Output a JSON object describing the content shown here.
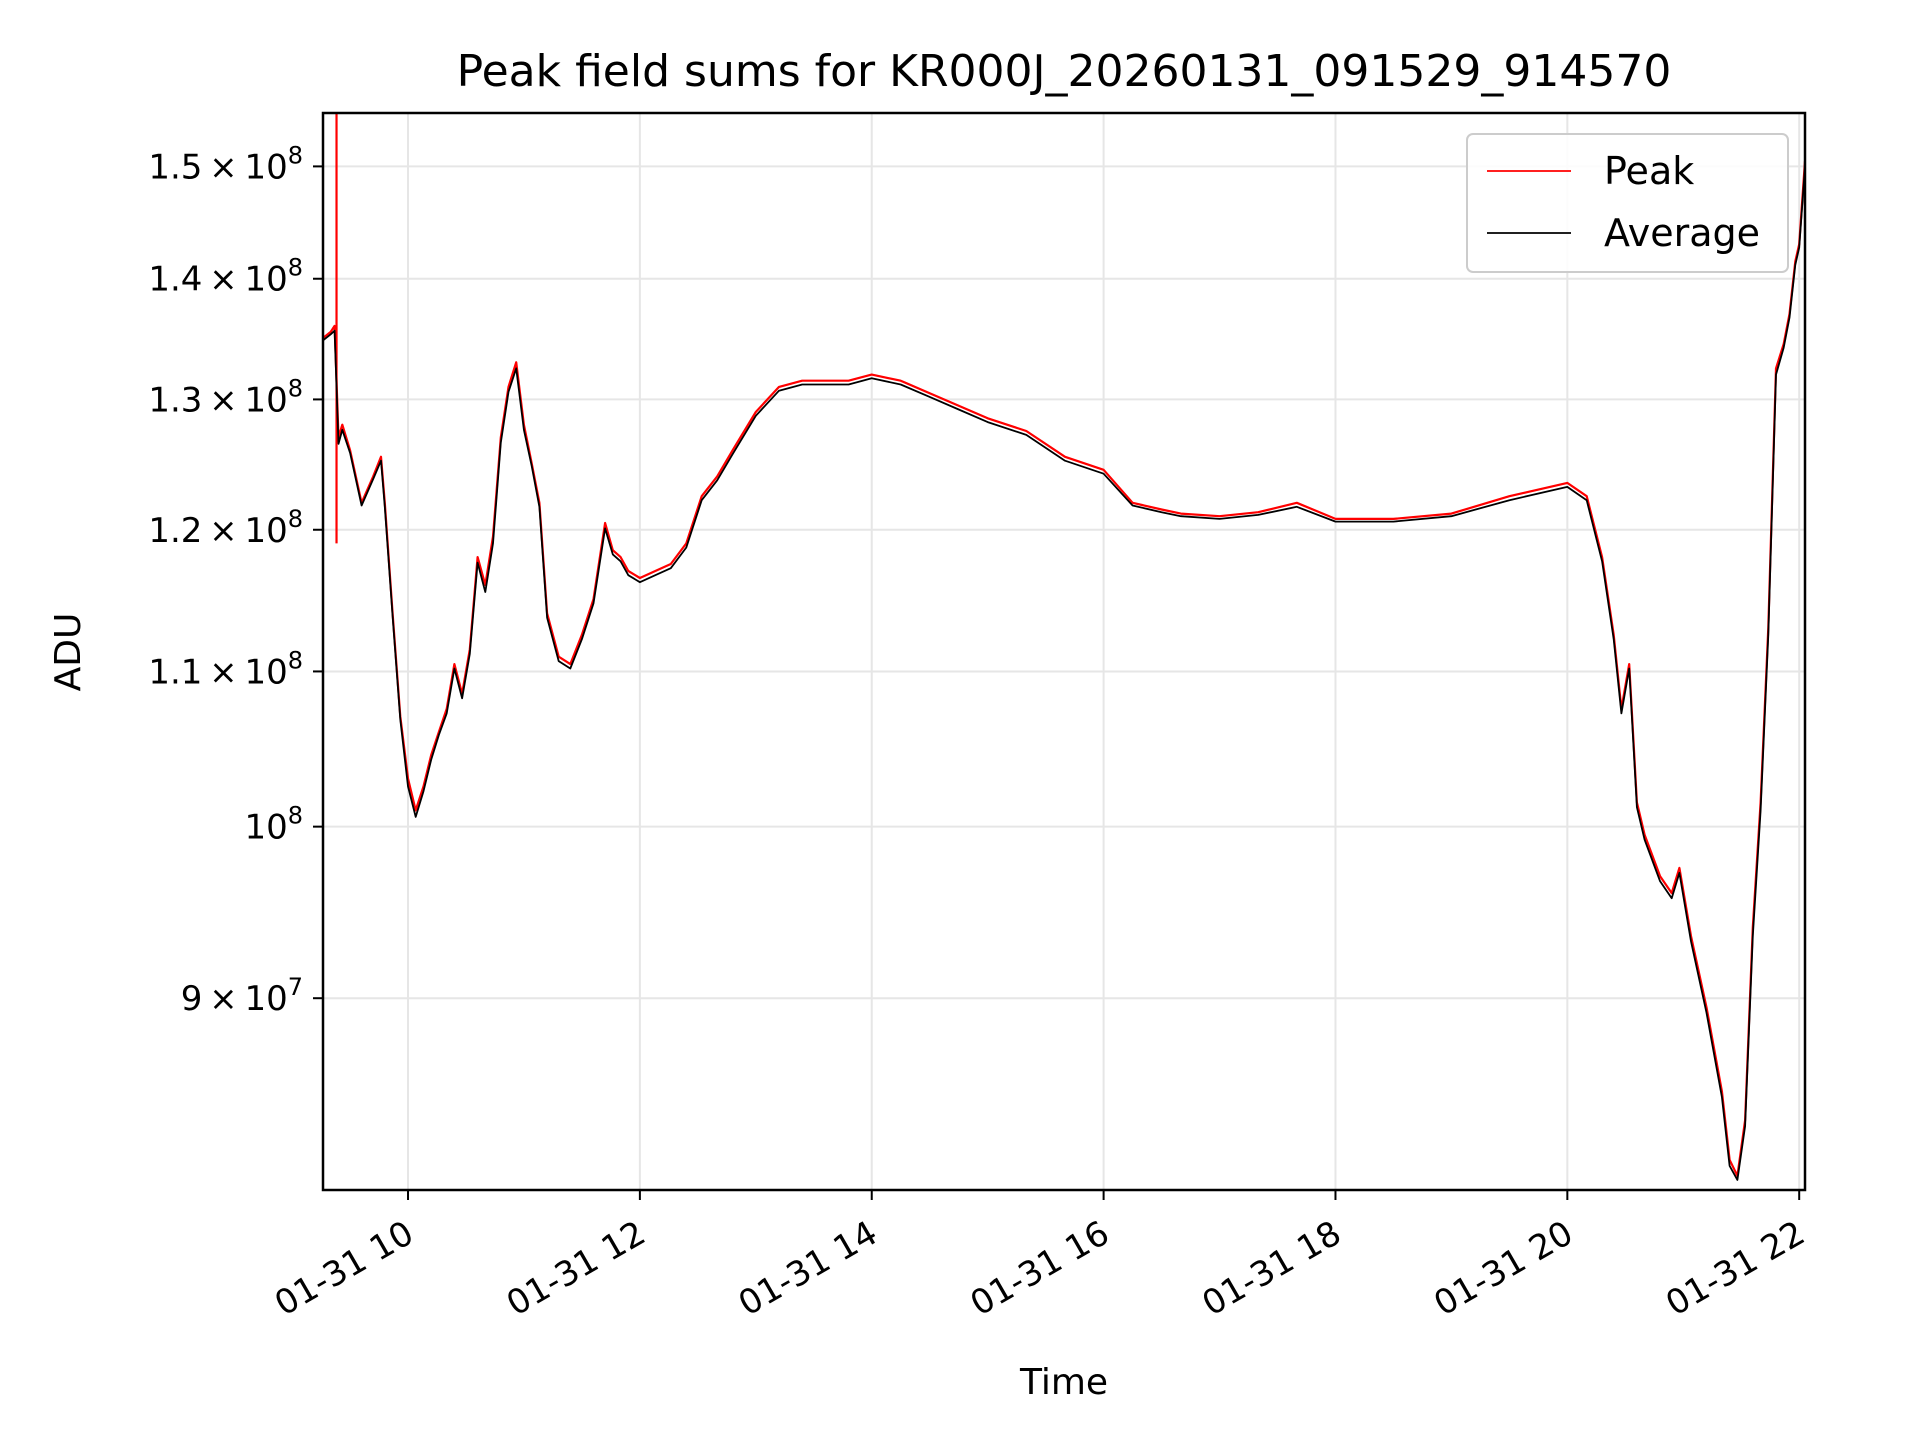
{
  "chart_data": {
    "type": "line",
    "title": "Peak field sums for KR000J_20260131_091529_914570",
    "xlabel": "Time",
    "ylabel": "ADU",
    "yscale": "log",
    "grid": true,
    "legend_position": "top-right",
    "xlim": [
      "2026-01-31 09:16",
      "2026-01-31 22:03"
    ],
    "ylim": [
      80000000,
      155000000
    ],
    "x_ticks": [
      {
        "value": "2026-01-31 10:00",
        "label": "01-31 10"
      },
      {
        "value": "2026-01-31 12:00",
        "label": "01-31 12"
      },
      {
        "value": "2026-01-31 14:00",
        "label": "01-31 14"
      },
      {
        "value": "2026-01-31 16:00",
        "label": "01-31 16"
      },
      {
        "value": "2026-01-31 18:00",
        "label": "01-31 18"
      },
      {
        "value": "2026-01-31 20:00",
        "label": "01-31 20"
      },
      {
        "value": "2026-01-31 22:00",
        "label": "01-31 22"
      }
    ],
    "y_ticks": [
      {
        "value": 90000000,
        "mantissa": "9",
        "base": "10",
        "exp": "7"
      },
      {
        "value": 100000000,
        "mantissa": "",
        "base": "10",
        "exp": "8"
      },
      {
        "value": 110000000,
        "mantissa": "1.1",
        "base": "10",
        "exp": "8"
      },
      {
        "value": 120000000,
        "mantissa": "1.2",
        "base": "10",
        "exp": "8"
      },
      {
        "value": 130000000,
        "mantissa": "1.3",
        "base": "10",
        "exp": "8"
      },
      {
        "value": 140000000,
        "mantissa": "1.4",
        "base": "10",
        "exp": "8"
      },
      {
        "value": 150000000,
        "mantissa": "1.5",
        "base": "10",
        "exp": "8"
      }
    ],
    "series": [
      {
        "name": "Peak",
        "color": "#ff0000",
        "spike": {
          "x": "2026-01-31 09:23",
          "y_min": 119000000,
          "y_max": 155000000
        },
        "x": [
          "2026-01-31 09:16",
          "2026-01-31 09:20",
          "2026-01-31 09:22",
          "2026-01-31 09:24",
          "2026-01-31 09:26",
          "2026-01-31 09:30",
          "2026-01-31 09:36",
          "2026-01-31 09:42",
          "2026-01-31 09:46",
          "2026-01-31 09:48",
          "2026-01-31 09:52",
          "2026-01-31 09:56",
          "2026-01-31 10:00",
          "2026-01-31 10:04",
          "2026-01-31 10:08",
          "2026-01-31 10:12",
          "2026-01-31 10:16",
          "2026-01-31 10:20",
          "2026-01-31 10:24",
          "2026-01-31 10:28",
          "2026-01-31 10:32",
          "2026-01-31 10:36",
          "2026-01-31 10:40",
          "2026-01-31 10:44",
          "2026-01-31 10:48",
          "2026-01-31 10:52",
          "2026-01-31 10:56",
          "2026-01-31 11:00",
          "2026-01-31 11:04",
          "2026-01-31 11:08",
          "2026-01-31 11:12",
          "2026-01-31 11:18",
          "2026-01-31 11:24",
          "2026-01-31 11:30",
          "2026-01-31 11:36",
          "2026-01-31 11:42",
          "2026-01-31 11:46",
          "2026-01-31 11:50",
          "2026-01-31 11:54",
          "2026-01-31 12:00",
          "2026-01-31 12:08",
          "2026-01-31 12:16",
          "2026-01-31 12:24",
          "2026-01-31 12:32",
          "2026-01-31 12:40",
          "2026-01-31 12:48",
          "2026-01-31 13:00",
          "2026-01-31 13:12",
          "2026-01-31 13:24",
          "2026-01-31 13:36",
          "2026-01-31 13:48",
          "2026-01-31 14:00",
          "2026-01-31 14:15",
          "2026-01-31 14:30",
          "2026-01-31 14:45",
          "2026-01-31 15:00",
          "2026-01-31 15:20",
          "2026-01-31 15:40",
          "2026-01-31 16:00",
          "2026-01-31 16:15",
          "2026-01-31 16:30",
          "2026-01-31 16:40",
          "2026-01-31 17:00",
          "2026-01-31 17:20",
          "2026-01-31 17:40",
          "2026-01-31 18:00",
          "2026-01-31 18:30",
          "2026-01-31 19:00",
          "2026-01-31 19:30",
          "2026-01-31 20:00",
          "2026-01-31 20:10",
          "2026-01-31 20:18",
          "2026-01-31 20:24",
          "2026-01-31 20:28",
          "2026-01-31 20:32",
          "2026-01-31 20:36",
          "2026-01-31 20:40",
          "2026-01-31 20:48",
          "2026-01-31 20:54",
          "2026-01-31 20:58",
          "2026-01-31 21:04",
          "2026-01-31 21:12",
          "2026-01-31 21:20",
          "2026-01-31 21:24",
          "2026-01-31 21:28",
          "2026-01-31 21:32",
          "2026-01-31 21:36",
          "2026-01-31 21:40",
          "2026-01-31 21:44",
          "2026-01-31 21:48",
          "2026-01-31 21:52",
          "2026-01-31 21:55",
          "2026-01-31 21:58",
          "2026-01-31 22:00",
          "2026-01-31 22:03"
        ],
        "y": [
          135000000,
          135500000,
          136000000,
          127000000,
          128000000,
          126000000,
          122000000,
          124000000,
          125500000,
          122000000,
          114000000,
          107000000,
          103000000,
          101000000,
          102500000,
          104500000,
          106000000,
          107500000,
          110500000,
          108500000,
          111500000,
          118000000,
          116000000,
          119500000,
          127000000,
          131000000,
          133000000,
          128000000,
          125000000,
          122000000,
          114000000,
          111000000,
          110500000,
          112500000,
          115000000,
          120500000,
          118500000,
          118000000,
          117000000,
          116500000,
          117000000,
          117500000,
          119000000,
          122500000,
          124000000,
          126000000,
          129000000,
          131000000,
          131500000,
          131500000,
          131500000,
          132000000,
          131500000,
          130500000,
          129500000,
          128500000,
          127500000,
          125500000,
          124500000,
          122000000,
          121500000,
          121200000,
          121000000,
          121300000,
          122000000,
          120800000,
          120800000,
          121200000,
          122500000,
          123500000,
          122500000,
          118000000,
          112500000,
          107500000,
          110500000,
          101500000,
          99500000,
          97000000,
          96000000,
          97500000,
          93500000,
          89500000,
          85000000,
          81500000,
          80700000,
          83500000,
          94000000,
          101500000,
          113000000,
          132500000,
          134500000,
          137000000,
          141500000,
          143000000,
          150500000
        ]
      },
      {
        "name": "Average",
        "color": "#000000",
        "x": [
          "2026-01-31 09:16",
          "2026-01-31 09:20",
          "2026-01-31 09:22",
          "2026-01-31 09:24",
          "2026-01-31 09:26",
          "2026-01-31 09:30",
          "2026-01-31 09:36",
          "2026-01-31 09:42",
          "2026-01-31 09:46",
          "2026-01-31 09:48",
          "2026-01-31 09:52",
          "2026-01-31 09:56",
          "2026-01-31 10:00",
          "2026-01-31 10:04",
          "2026-01-31 10:08",
          "2026-01-31 10:12",
          "2026-01-31 10:16",
          "2026-01-31 10:20",
          "2026-01-31 10:24",
          "2026-01-31 10:28",
          "2026-01-31 10:32",
          "2026-01-31 10:36",
          "2026-01-31 10:40",
          "2026-01-31 10:44",
          "2026-01-31 10:48",
          "2026-01-31 10:52",
          "2026-01-31 10:56",
          "2026-01-31 11:00",
          "2026-01-31 11:04",
          "2026-01-31 11:08",
          "2026-01-31 11:12",
          "2026-01-31 11:18",
          "2026-01-31 11:24",
          "2026-01-31 11:30",
          "2026-01-31 11:36",
          "2026-01-31 11:42",
          "2026-01-31 11:46",
          "2026-01-31 11:50",
          "2026-01-31 11:54",
          "2026-01-31 12:00",
          "2026-01-31 12:08",
          "2026-01-31 12:16",
          "2026-01-31 12:24",
          "2026-01-31 12:32",
          "2026-01-31 12:40",
          "2026-01-31 12:48",
          "2026-01-31 13:00",
          "2026-01-31 13:12",
          "2026-01-31 13:24",
          "2026-01-31 13:36",
          "2026-01-31 13:48",
          "2026-01-31 14:00",
          "2026-01-31 14:15",
          "2026-01-31 14:30",
          "2026-01-31 14:45",
          "2026-01-31 15:00",
          "2026-01-31 15:20",
          "2026-01-31 15:40",
          "2026-01-31 16:00",
          "2026-01-31 16:15",
          "2026-01-31 16:30",
          "2026-01-31 16:40",
          "2026-01-31 17:00",
          "2026-01-31 17:20",
          "2026-01-31 17:40",
          "2026-01-31 18:00",
          "2026-01-31 18:30",
          "2026-01-31 19:00",
          "2026-01-31 19:30",
          "2026-01-31 20:00",
          "2026-01-31 20:10",
          "2026-01-31 20:18",
          "2026-01-31 20:24",
          "2026-01-31 20:28",
          "2026-01-31 20:32",
          "2026-01-31 20:36",
          "2026-01-31 20:40",
          "2026-01-31 20:48",
          "2026-01-31 20:54",
          "2026-01-31 20:58",
          "2026-01-31 21:04",
          "2026-01-31 21:12",
          "2026-01-31 21:20",
          "2026-01-31 21:24",
          "2026-01-31 21:28",
          "2026-01-31 21:32",
          "2026-01-31 21:36",
          "2026-01-31 21:40",
          "2026-01-31 21:44",
          "2026-01-31 21:48",
          "2026-01-31 21:52",
          "2026-01-31 21:55",
          "2026-01-31 21:58",
          "2026-01-31 22:00",
          "2026-01-31 22:03"
        ],
        "y": [
          134800000,
          135300000,
          135600000,
          126500000,
          127600000,
          125800000,
          121800000,
          123800000,
          125200000,
          121700000,
          113800000,
          106800000,
          102500000,
          100600000,
          102200000,
          104200000,
          105800000,
          107200000,
          110200000,
          108200000,
          111200000,
          117600000,
          115500000,
          119000000,
          126600000,
          130600000,
          132500000,
          127600000,
          124800000,
          121700000,
          113700000,
          110700000,
          110200000,
          112200000,
          114700000,
          120100000,
          118200000,
          117700000,
          116700000,
          116200000,
          116700000,
          117200000,
          118700000,
          122200000,
          123700000,
          125700000,
          128700000,
          130700000,
          131200000,
          131200000,
          131200000,
          131700000,
          131200000,
          130200000,
          129200000,
          128200000,
          127200000,
          125200000,
          124200000,
          121800000,
          121300000,
          121000000,
          120800000,
          121100000,
          121700000,
          120600000,
          120600000,
          121000000,
          122200000,
          123200000,
          122200000,
          117700000,
          112200000,
          107200000,
          110200000,
          101200000,
          99200000,
          96700000,
          95700000,
          97200000,
          93200000,
          89200000,
          84700000,
          81200000,
          80500000,
          83200000,
          93500000,
          101000000,
          112500000,
          132000000,
          134200000,
          136700000,
          141200000,
          142700000,
          150000000
        ]
      }
    ]
  }
}
